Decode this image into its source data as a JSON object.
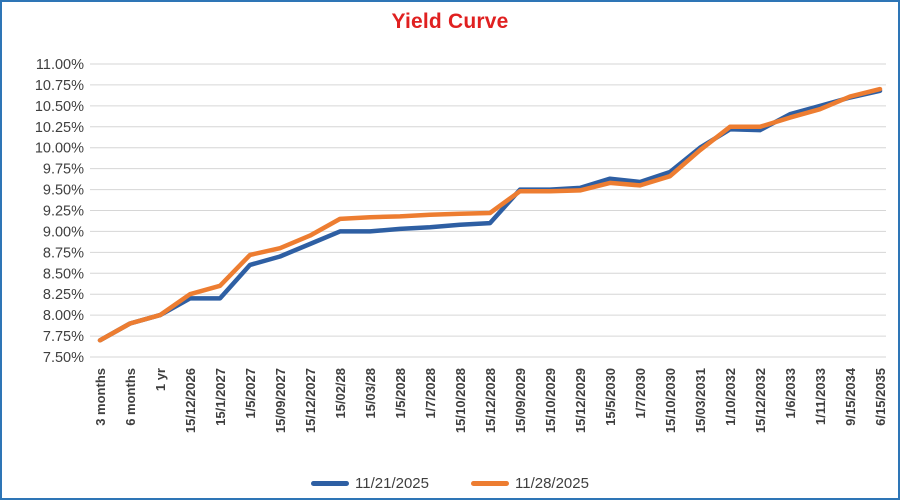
{
  "window": {
    "border_color": "#2E75B6",
    "background": "#FFFFFF"
  },
  "title": {
    "text": "Yield Curve",
    "color": "#E02020"
  },
  "axis": {
    "y_tick_labels": [
      "11.00%",
      "10.75%",
      "10.50%",
      "10.25%",
      "10.00%",
      "9.75%",
      "9.50%",
      "9.25%",
      "9.00%",
      "8.75%",
      "8.50%",
      "8.25%",
      "8.00%",
      "7.75%",
      "7.50%"
    ],
    "label_color": "#3F3F3F",
    "gridline_color": "#D6D6D6"
  },
  "legend": {
    "position": "bottom",
    "items": [
      {
        "label": "11/21/2025",
        "color": "#2E5FA3"
      },
      {
        "label": "11/28/2025",
        "color": "#ED7D31"
      }
    ]
  },
  "chart_data": {
    "type": "line",
    "title": "Yield Curve",
    "categories": [
      "3 months",
      "6 months",
      "1 yr",
      "15/12/2026",
      "15/1/2027",
      "1/5/2027",
      "15/09/2027",
      "15/12/2027",
      "15/02/28",
      "15/03/28",
      "1/5/2028",
      "1/7/2028",
      "15/10/2028",
      "15/12/2028",
      "15/09/2029",
      "15/10/2029",
      "15/12/2029",
      "15/5/2030",
      "1/7/2030",
      "15/10/2030",
      "15/03/2031",
      "1/10/2032",
      "15/12/2032",
      "1/6/2033",
      "1/11/2033",
      "9/15/2034",
      "6/15/2035"
    ],
    "series": [
      {
        "name": "11/21/2025",
        "color": "#2E5FA3",
        "values": [
          7.7,
          7.9,
          8.0,
          8.2,
          8.2,
          8.6,
          8.7,
          8.85,
          9.0,
          9.0,
          9.03,
          9.05,
          9.08,
          9.1,
          9.5,
          9.5,
          9.52,
          9.63,
          9.59,
          9.71,
          10.0,
          10.22,
          10.21,
          10.4,
          10.5,
          10.6,
          10.68
        ]
      },
      {
        "name": "11/28/2025",
        "color": "#ED7D31",
        "values": [
          7.7,
          7.9,
          8.0,
          8.25,
          8.35,
          8.72,
          8.8,
          8.95,
          9.15,
          9.17,
          9.18,
          9.2,
          9.21,
          9.22,
          9.48,
          9.48,
          9.49,
          9.58,
          9.55,
          9.66,
          9.97,
          10.25,
          10.25,
          10.36,
          10.46,
          10.61,
          10.7
        ]
      }
    ],
    "ylim": [
      7.5,
      11.0
    ],
    "y_tick_step": 0.25,
    "y_tick_format": "percent_2dp",
    "grid": true,
    "x_label_rotation": 90,
    "legend_position": "bottom"
  }
}
